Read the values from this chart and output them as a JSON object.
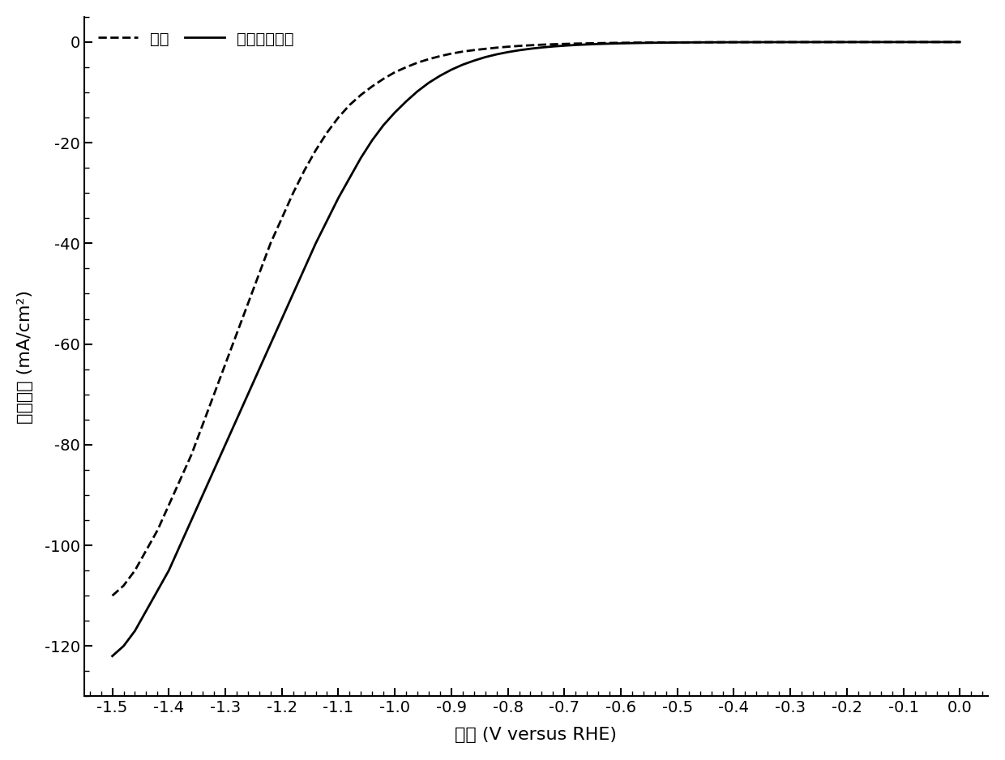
{
  "title": "",
  "xlabel": "电势 (V versus RHE)",
  "ylabel": "电流密度 (mA/cm²)",
  "xlim": [
    -1.55,
    0.05
  ],
  "ylim": [
    -130,
    5
  ],
  "xticks": [
    -1.5,
    -1.4,
    -1.3,
    -1.2,
    -1.1,
    -1.0,
    -0.9,
    -0.8,
    -0.7,
    -0.6,
    -0.5,
    -0.4,
    -0.3,
    -0.2,
    -0.1,
    0.0
  ],
  "yticks": [
    0,
    -20,
    -40,
    -60,
    -80,
    -100,
    -120
  ],
  "legend_labels": [
    "氮气",
    "二氧化碳气体"
  ],
  "background_color": "#ffffff",
  "line_color": "#000000",
  "linewidth": 2.0,
  "N2_x": [
    -1.5,
    -1.48,
    -1.46,
    -1.44,
    -1.42,
    -1.4,
    -1.38,
    -1.36,
    -1.34,
    -1.32,
    -1.3,
    -1.28,
    -1.26,
    -1.24,
    -1.22,
    -1.2,
    -1.18,
    -1.16,
    -1.14,
    -1.12,
    -1.1,
    -1.08,
    -1.06,
    -1.04,
    -1.02,
    -1.0,
    -0.98,
    -0.96,
    -0.94,
    -0.92,
    -0.9,
    -0.88,
    -0.86,
    -0.84,
    -0.82,
    -0.8,
    -0.78,
    -0.76,
    -0.74,
    -0.72,
    -0.7,
    -0.68,
    -0.66,
    -0.64,
    -0.62,
    -0.6,
    -0.58,
    -0.56,
    -0.54,
    -0.52,
    -0.5,
    -0.48,
    -0.46,
    -0.44,
    -0.42,
    -0.4,
    -0.38,
    -0.36,
    -0.34,
    -0.32,
    -0.3,
    -0.28,
    -0.26,
    -0.24,
    -0.22,
    -0.2,
    -0.18,
    -0.16,
    -0.14,
    -0.12,
    -0.1,
    -0.08,
    -0.06,
    -0.04,
    -0.02,
    0.0
  ],
  "N2_y": [
    -110,
    -108,
    -105,
    -101,
    -97,
    -92,
    -87,
    -82,
    -76,
    -70,
    -64,
    -58,
    -52,
    -46,
    -40,
    -35,
    -30,
    -25.5,
    -21.5,
    -18,
    -15,
    -12.5,
    -10.5,
    -8.8,
    -7.3,
    -6.0,
    -5.0,
    -4.1,
    -3.4,
    -2.8,
    -2.3,
    -1.9,
    -1.6,
    -1.35,
    -1.12,
    -0.93,
    -0.77,
    -0.64,
    -0.53,
    -0.44,
    -0.37,
    -0.31,
    -0.26,
    -0.22,
    -0.18,
    -0.15,
    -0.13,
    -0.11,
    -0.09,
    -0.075,
    -0.063,
    -0.053,
    -0.044,
    -0.037,
    -0.031,
    -0.026,
    -0.022,
    -0.018,
    -0.015,
    -0.013,
    -0.011,
    -0.009,
    -0.0075,
    -0.006,
    -0.005,
    -0.004,
    -0.003,
    -0.0025,
    -0.002,
    -0.0015,
    -0.001,
    -0.0008,
    -0.0006,
    -0.0005,
    -0.0003,
    0.0
  ],
  "CO2_x": [
    -1.5,
    -1.48,
    -1.46,
    -1.44,
    -1.42,
    -1.4,
    -1.38,
    -1.36,
    -1.34,
    -1.32,
    -1.3,
    -1.28,
    -1.26,
    -1.24,
    -1.22,
    -1.2,
    -1.18,
    -1.16,
    -1.14,
    -1.12,
    -1.1,
    -1.08,
    -1.06,
    -1.04,
    -1.02,
    -1.0,
    -0.98,
    -0.96,
    -0.94,
    -0.92,
    -0.9,
    -0.88,
    -0.86,
    -0.84,
    -0.82,
    -0.8,
    -0.78,
    -0.76,
    -0.74,
    -0.72,
    -0.7,
    -0.68,
    -0.66,
    -0.64,
    -0.62,
    -0.6,
    -0.58,
    -0.56,
    -0.54,
    -0.52,
    -0.5,
    -0.48,
    -0.46,
    -0.44,
    -0.42,
    -0.4,
    -0.38,
    -0.36,
    -0.34,
    -0.32,
    -0.3,
    -0.28,
    -0.26,
    -0.24,
    -0.22,
    -0.2,
    -0.18,
    -0.16,
    -0.14,
    -0.12,
    -0.1,
    -0.08,
    -0.06,
    -0.04,
    -0.02,
    0.0
  ],
  "CO2_y": [
    -122,
    -120,
    -117,
    -113,
    -109,
    -105,
    -100,
    -95,
    -90,
    -85,
    -80,
    -75,
    -70,
    -65,
    -60,
    -55,
    -50,
    -45,
    -40,
    -35.5,
    -31,
    -27,
    -23,
    -19.5,
    -16.5,
    -14,
    -11.8,
    -9.8,
    -8.1,
    -6.7,
    -5.5,
    -4.5,
    -3.7,
    -3.0,
    -2.45,
    -2.0,
    -1.63,
    -1.33,
    -1.08,
    -0.88,
    -0.72,
    -0.58,
    -0.48,
    -0.39,
    -0.32,
    -0.26,
    -0.21,
    -0.17,
    -0.14,
    -0.115,
    -0.094,
    -0.077,
    -0.063,
    -0.052,
    -0.043,
    -0.035,
    -0.029,
    -0.024,
    -0.019,
    -0.016,
    -0.013,
    -0.01,
    -0.008,
    -0.007,
    -0.006,
    -0.005,
    -0.004,
    -0.003,
    -0.0025,
    -0.002,
    -0.0015,
    -0.001,
    -0.0008,
    -0.0006,
    -0.0003,
    0.0
  ]
}
